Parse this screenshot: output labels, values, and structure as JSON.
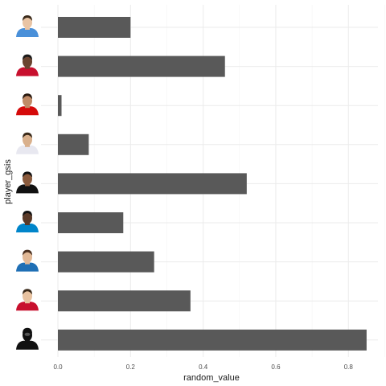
{
  "chart_data": {
    "type": "bar",
    "orientation": "horizontal",
    "title": "",
    "xlabel": "random_value",
    "ylabel": "player_gsis",
    "xlim": [
      0,
      0.85
    ],
    "xticks": [
      "0.0",
      "0.2",
      "0.4",
      "0.6",
      "0.8"
    ],
    "xtick_values": [
      0.0,
      0.2,
      0.4,
      0.6,
      0.8
    ],
    "grid": true,
    "bar_color": "#595959",
    "categories_top_to_bottom": [
      {
        "headshot": "player-headshot-icon",
        "jersey_color": "#4a90d9",
        "skin": "#e9c4a4",
        "hair": "#3a2a1a",
        "value": 0.2
      },
      {
        "headshot": "player-headshot-icon",
        "jersey_color": "#c8102e",
        "skin": "#6b4430",
        "hair": "#1a1a1a",
        "value": 0.46
      },
      {
        "headshot": "player-headshot-icon",
        "jersey_color": "#d50a0a",
        "skin": "#c08a66",
        "hair": "#2a1a10",
        "value": 0.01
      },
      {
        "headshot": "player-headshot-icon",
        "jersey_color": "#e8e8f0",
        "skin": "#d9b08c",
        "hair": "#3a2a1a",
        "value": 0.085
      },
      {
        "headshot": "player-headshot-icon",
        "jersey_color": "#111111",
        "skin": "#8a5a3c",
        "hair": "#111111",
        "value": 0.52
      },
      {
        "headshot": "player-headshot-icon",
        "jersey_color": "#0085ca",
        "skin": "#5a3a28",
        "hair": "#111111",
        "value": 0.18
      },
      {
        "headshot": "player-headshot-icon",
        "jersey_color": "#1f6fb5",
        "skin": "#e1b896",
        "hair": "#4a3020",
        "value": 0.265
      },
      {
        "headshot": "player-headshot-icon",
        "jersey_color": "#c8102e",
        "skin": "#e8c2a0",
        "hair": "#3a2a1a",
        "value": 0.365
      },
      {
        "headshot": "player-silhouette-icon",
        "jersey_color": "#111111",
        "skin": "#111111",
        "hair": "#111111",
        "value": 0.85
      }
    ]
  }
}
